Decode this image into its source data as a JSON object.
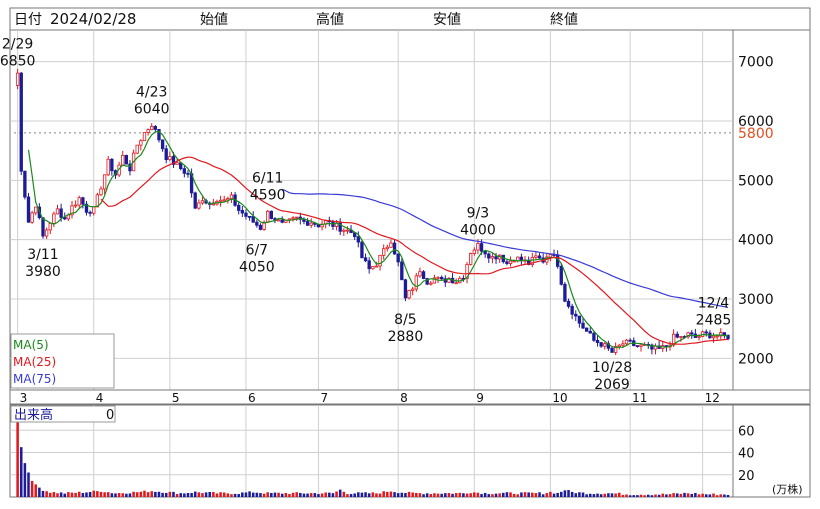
{
  "header": {
    "date_label": "日付",
    "date_value": "2024/02/28",
    "open_label": "始値",
    "high_label": "高値",
    "low_label": "安値",
    "close_label": "終値"
  },
  "colors": {
    "up": "#e0191f",
    "down": "#1c1c99",
    "candle_up_fill": "#ffffff",
    "ma5": "#1a8a1a",
    "ma25": "#e0191f",
    "ma75": "#3a3ad6",
    "ref_line": "#e0501f",
    "grid": "#cfcfcf",
    "volume_up": "#e0191f",
    "volume_down": "#1c1c99"
  },
  "legend": {
    "ma5": "MA(5)",
    "ma25": "MA(25)",
    "ma75": "MA(75)"
  },
  "volume_panel": {
    "label": "出来高",
    "value": "0",
    "unit": "(万株)"
  },
  "chart_data": {
    "type": "candlestick",
    "x_axis": {
      "tick_labels": [
        "3",
        "4",
        "5",
        "6",
        "7",
        "8",
        "9",
        "10",
        "11",
        "12"
      ],
      "tick_positions": [
        1,
        22,
        43,
        64,
        84,
        106,
        127,
        148,
        170,
        190
      ],
      "range": [
        0,
        197
      ]
    },
    "price_axis": {
      "range": [
        1500,
        7500
      ],
      "tick_labels": [
        "2000",
        "3000",
        "4000",
        "5000",
        "6000",
        "7000"
      ],
      "tick_values": [
        2000,
        3000,
        4000,
        5000,
        6000,
        7000
      ],
      "reference": {
        "value": 5800,
        "label": "5800"
      }
    },
    "volume_axis": {
      "range": [
        0,
        80
      ],
      "tick_labels": [
        "20",
        "40",
        "60"
      ],
      "tick_values": [
        20,
        40,
        60
      ]
    },
    "annotations": [
      {
        "date": "2/29",
        "price": "6850",
        "x": 1,
        "y": 6850,
        "placement": "above"
      },
      {
        "date": "4/23",
        "price": "6040",
        "x": 38,
        "y": 6040,
        "placement": "above"
      },
      {
        "date": "6/11",
        "price": "4590",
        "x": 70,
        "y": 4590,
        "placement": "above"
      },
      {
        "date": "9/3",
        "price": "4000",
        "x": 128,
        "y": 4000,
        "placement": "above"
      },
      {
        "date": "12/4",
        "price": "2485",
        "x": 193,
        "y": 2485,
        "placement": "above"
      },
      {
        "date": "3/11",
        "price": "3980",
        "x": 8,
        "y": 3980,
        "placement": "below"
      },
      {
        "date": "6/7",
        "price": "4050",
        "x": 67,
        "y": 4050,
        "placement": "below"
      },
      {
        "date": "8/5",
        "price": "2880",
        "x": 108,
        "y": 2880,
        "placement": "below"
      },
      {
        "date": "10/28",
        "price": "2069",
        "x": 165,
        "y": 2069,
        "placement": "below"
      }
    ],
    "close_path": [
      [
        0,
        6600
      ],
      [
        1,
        6800
      ],
      [
        2,
        5200
      ],
      [
        4,
        4300
      ],
      [
        6,
        4600
      ],
      [
        8,
        4050
      ],
      [
        10,
        4300
      ],
      [
        12,
        4500
      ],
      [
        14,
        4350
      ],
      [
        16,
        4550
      ],
      [
        18,
        4700
      ],
      [
        20,
        4500
      ],
      [
        22,
        4500
      ],
      [
        24,
        4900
      ],
      [
        26,
        5300
      ],
      [
        28,
        5100
      ],
      [
        30,
        5400
      ],
      [
        32,
        5200
      ],
      [
        34,
        5600
      ],
      [
        36,
        5800
      ],
      [
        38,
        5950
      ],
      [
        40,
        5700
      ],
      [
        42,
        5400
      ],
      [
        44,
        5300
      ],
      [
        46,
        5200
      ],
      [
        48,
        5100
      ],
      [
        50,
        4500
      ],
      [
        52,
        4700
      ],
      [
        54,
        4600
      ],
      [
        56,
        4700
      ],
      [
        58,
        4650
      ],
      [
        60,
        4700
      ],
      [
        62,
        4500
      ],
      [
        64,
        4400
      ],
      [
        66,
        4300
      ],
      [
        68,
        4200
      ],
      [
        70,
        4450
      ],
      [
        72,
        4350
      ],
      [
        74,
        4250
      ],
      [
        76,
        4300
      ],
      [
        78,
        4350
      ],
      [
        80,
        4300
      ],
      [
        82,
        4300
      ],
      [
        84,
        4250
      ],
      [
        86,
        4300
      ],
      [
        88,
        4250
      ],
      [
        90,
        4200
      ],
      [
        92,
        4150
      ],
      [
        94,
        4100
      ],
      [
        96,
        3700
      ],
      [
        98,
        3500
      ],
      [
        100,
        3600
      ],
      [
        102,
        3800
      ],
      [
        104,
        4000
      ],
      [
        106,
        3600
      ],
      [
        108,
        3000
      ],
      [
        110,
        3200
      ],
      [
        112,
        3500
      ],
      [
        114,
        3300
      ],
      [
        116,
        3350
      ],
      [
        118,
        3300
      ],
      [
        120,
        3350
      ],
      [
        122,
        3300
      ],
      [
        124,
        3400
      ],
      [
        126,
        3800
      ],
      [
        128,
        3900
      ],
      [
        130,
        3800
      ],
      [
        132,
        3700
      ],
      [
        134,
        3750
      ],
      [
        136,
        3600
      ],
      [
        138,
        3700
      ],
      [
        140,
        3650
      ],
      [
        142,
        3600
      ],
      [
        144,
        3700
      ],
      [
        146,
        3650
      ],
      [
        148,
        3800
      ],
      [
        150,
        3600
      ],
      [
        152,
        3000
      ],
      [
        154,
        2800
      ],
      [
        156,
        2600
      ],
      [
        158,
        2450
      ],
      [
        160,
        2300
      ],
      [
        162,
        2250
      ],
      [
        164,
        2150
      ],
      [
        165,
        2100
      ],
      [
        166,
        2150
      ],
      [
        168,
        2250
      ],
      [
        170,
        2250
      ],
      [
        172,
        2200
      ],
      [
        174,
        2200
      ],
      [
        176,
        2150
      ],
      [
        178,
        2150
      ],
      [
        180,
        2200
      ],
      [
        182,
        2350
      ],
      [
        184,
        2350
      ],
      [
        186,
        2400
      ],
      [
        188,
        2350
      ],
      [
        190,
        2400
      ],
      [
        192,
        2400
      ],
      [
        194,
        2380
      ],
      [
        196,
        2370
      ]
    ],
    "volume_path": [
      [
        0,
        75
      ],
      [
        1,
        70
      ],
      [
        2,
        45
      ],
      [
        3,
        30
      ],
      [
        4,
        22
      ],
      [
        5,
        15
      ],
      [
        6,
        10
      ],
      [
        7,
        8
      ],
      [
        8,
        6
      ],
      [
        10,
        4
      ],
      [
        14,
        3
      ],
      [
        20,
        4
      ],
      [
        24,
        5
      ],
      [
        28,
        3
      ],
      [
        34,
        4
      ],
      [
        38,
        5
      ],
      [
        42,
        4
      ],
      [
        46,
        3
      ],
      [
        50,
        4
      ],
      [
        56,
        3
      ],
      [
        62,
        3
      ],
      [
        66,
        4
      ],
      [
        70,
        3
      ],
      [
        76,
        3
      ],
      [
        82,
        3
      ],
      [
        88,
        3
      ],
      [
        90,
        6
      ],
      [
        92,
        3
      ],
      [
        100,
        3
      ],
      [
        104,
        5
      ],
      [
        106,
        4
      ],
      [
        110,
        3
      ],
      [
        116,
        3
      ],
      [
        124,
        3
      ],
      [
        126,
        4
      ],
      [
        130,
        3
      ],
      [
        140,
        3
      ],
      [
        146,
        3
      ],
      [
        148,
        4
      ],
      [
        150,
        3
      ],
      [
        152,
        6
      ],
      [
        154,
        4
      ],
      [
        158,
        3
      ],
      [
        164,
        3
      ],
      [
        170,
        2
      ],
      [
        180,
        2
      ],
      [
        186,
        3
      ],
      [
        192,
        2
      ],
      [
        196,
        2
      ]
    ]
  }
}
